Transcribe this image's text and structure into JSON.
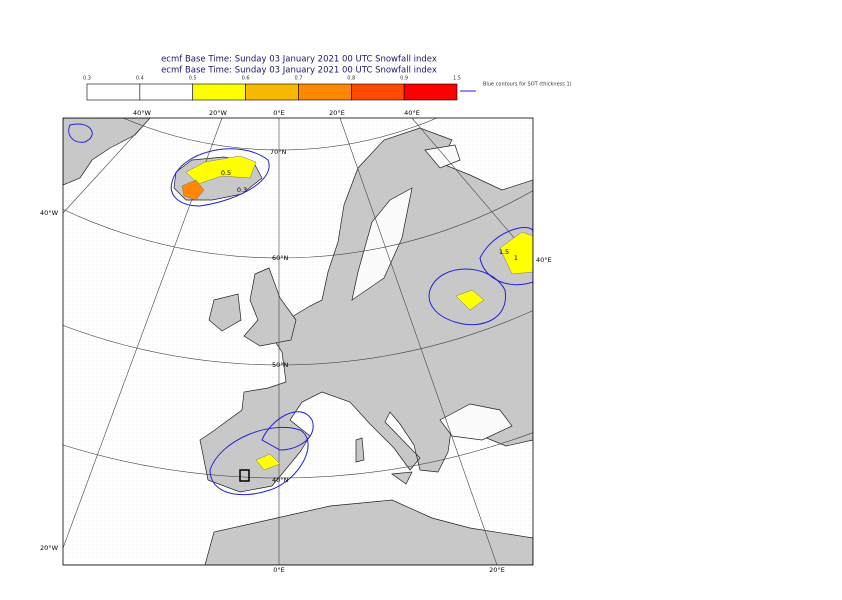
{
  "header": {
    "title_lines": [
      "ecmf  Base Time: Sunday 03 January 2021 00 UTC Snowfall index",
      "ecmf  Base Time: Sunday 03 January 2021 00 UTC Snowfall index"
    ]
  },
  "colorbar": {
    "ticks": [
      "0.3",
      "0.4",
      "0.5",
      "0.6",
      "0.7",
      "0.8",
      "0.9",
      "1.5"
    ],
    "bin_colors": [
      "#ffffff",
      "#ffffff",
      "#ffff00",
      "#f8b800",
      "#ff8800",
      "#ff4a00",
      "#ff0000"
    ],
    "legend": "Blue contours for SOT (thickness 1)"
  },
  "map": {
    "top_labels": [
      "40°W",
      "20°W",
      "0°E",
      "20°E",
      "40°E"
    ],
    "left_labels": [
      "40°W",
      "20°W"
    ],
    "right_labels": [
      "40°E"
    ],
    "bottom_labels": [
      "0°E",
      "20°E"
    ],
    "latitude_labels": [
      "70°N",
      "60°N",
      "50°N",
      "40°N"
    ],
    "contour_labels": [
      "0.5",
      "0.3",
      "1.5",
      "1"
    ]
  }
}
